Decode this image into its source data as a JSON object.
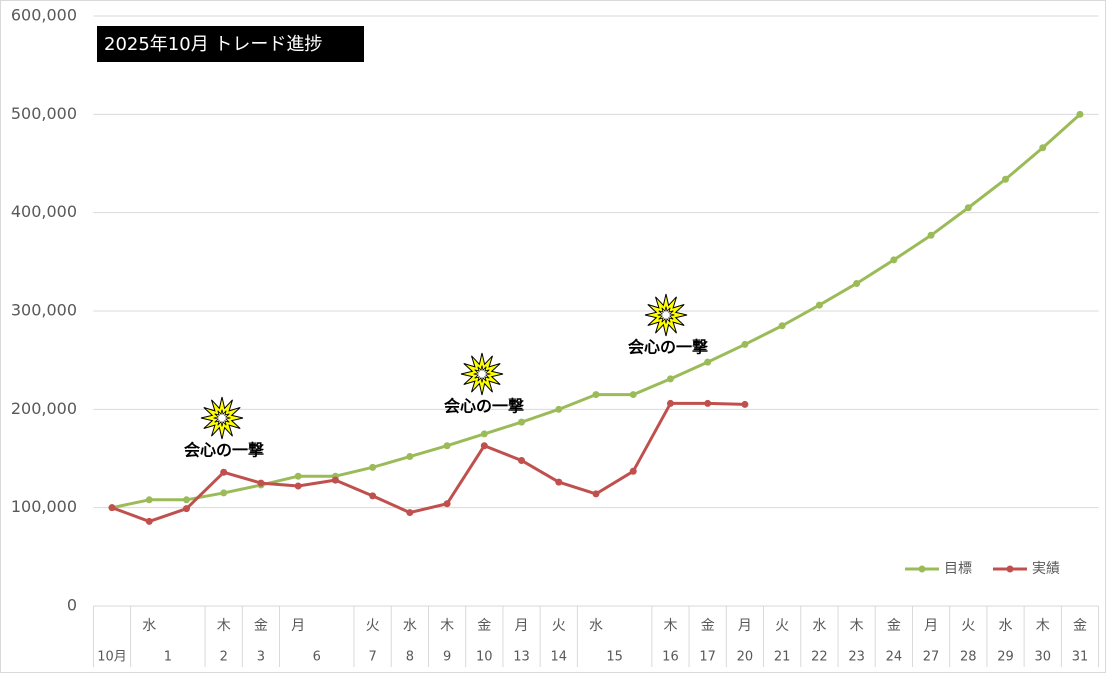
{
  "chart_data": {
    "type": "line",
    "title": "2025年10月  トレード進捗",
    "categories": [
      null,
      "水",
      null,
      "木",
      "金",
      "月",
      null,
      "火",
      "水",
      "木",
      "金",
      "月",
      "火",
      "水",
      null,
      "木",
      "金",
      "月",
      "火",
      "水",
      "木",
      "金",
      "月",
      "火",
      "水",
      "木",
      "金"
    ],
    "date_groups": [
      {
        "label": "10月",
        "span": 1
      },
      {
        "label": "1",
        "span": 2
      },
      {
        "label": "2",
        "span": 1
      },
      {
        "label": "3",
        "span": 1
      },
      {
        "label": "6",
        "span": 2
      },
      {
        "label": "7",
        "span": 1
      },
      {
        "label": "8",
        "span": 1
      },
      {
        "label": "9",
        "span": 1
      },
      {
        "label": "10",
        "span": 1
      },
      {
        "label": "13",
        "span": 1
      },
      {
        "label": "14",
        "span": 1
      },
      {
        "label": "15",
        "span": 2
      },
      {
        "label": "16",
        "span": 1
      },
      {
        "label": "17",
        "span": 1
      },
      {
        "label": "20",
        "span": 1
      },
      {
        "label": "21",
        "span": 1
      },
      {
        "label": "22",
        "span": 1
      },
      {
        "label": "23",
        "span": 1
      },
      {
        "label": "24",
        "span": 1
      },
      {
        "label": "27",
        "span": 1
      },
      {
        "label": "28",
        "span": 1
      },
      {
        "label": "29",
        "span": 1
      },
      {
        "label": "30",
        "span": 1
      },
      {
        "label": "31",
        "span": 1
      }
    ],
    "series": [
      {
        "name": "目標",
        "color": "#9bbb59",
        "values": [
          100000,
          108000,
          108000,
          115000,
          123000,
          132000,
          132000,
          141000,
          152000,
          163000,
          175000,
          187000,
          200000,
          215000,
          215000,
          231000,
          248000,
          266000,
          285000,
          306000,
          328000,
          352000,
          377000,
          405000,
          434000,
          466000,
          500000
        ]
      },
      {
        "name": "実績",
        "color": "#c0504d",
        "values": [
          100000,
          86000,
          99000,
          136000,
          125000,
          122000,
          128000,
          112000,
          95000,
          104000,
          163000,
          148000,
          126000,
          114000,
          137000,
          206000,
          206000,
          205000,
          null,
          null,
          null,
          null,
          null,
          null,
          null,
          null,
          null
        ]
      }
    ],
    "annotations": [
      "会心の一撃",
      "会心の一撃",
      "会心の一撃"
    ],
    "ylim": [
      0,
      600000
    ],
    "yticks": [
      0,
      {
        "value": 100000,
        "label": "100,000"
      },
      {
        "value": 200000,
        "label": "200,000"
      },
      {
        "value": 300000,
        "label": "300,000"
      },
      {
        "value": 400000,
        "label": "400,000"
      },
      {
        "value": 500000,
        "label": "500,000"
      },
      {
        "value": 600000,
        "label": "600,000"
      }
    ],
    "grid": true,
    "legend": "bottom-right"
  }
}
